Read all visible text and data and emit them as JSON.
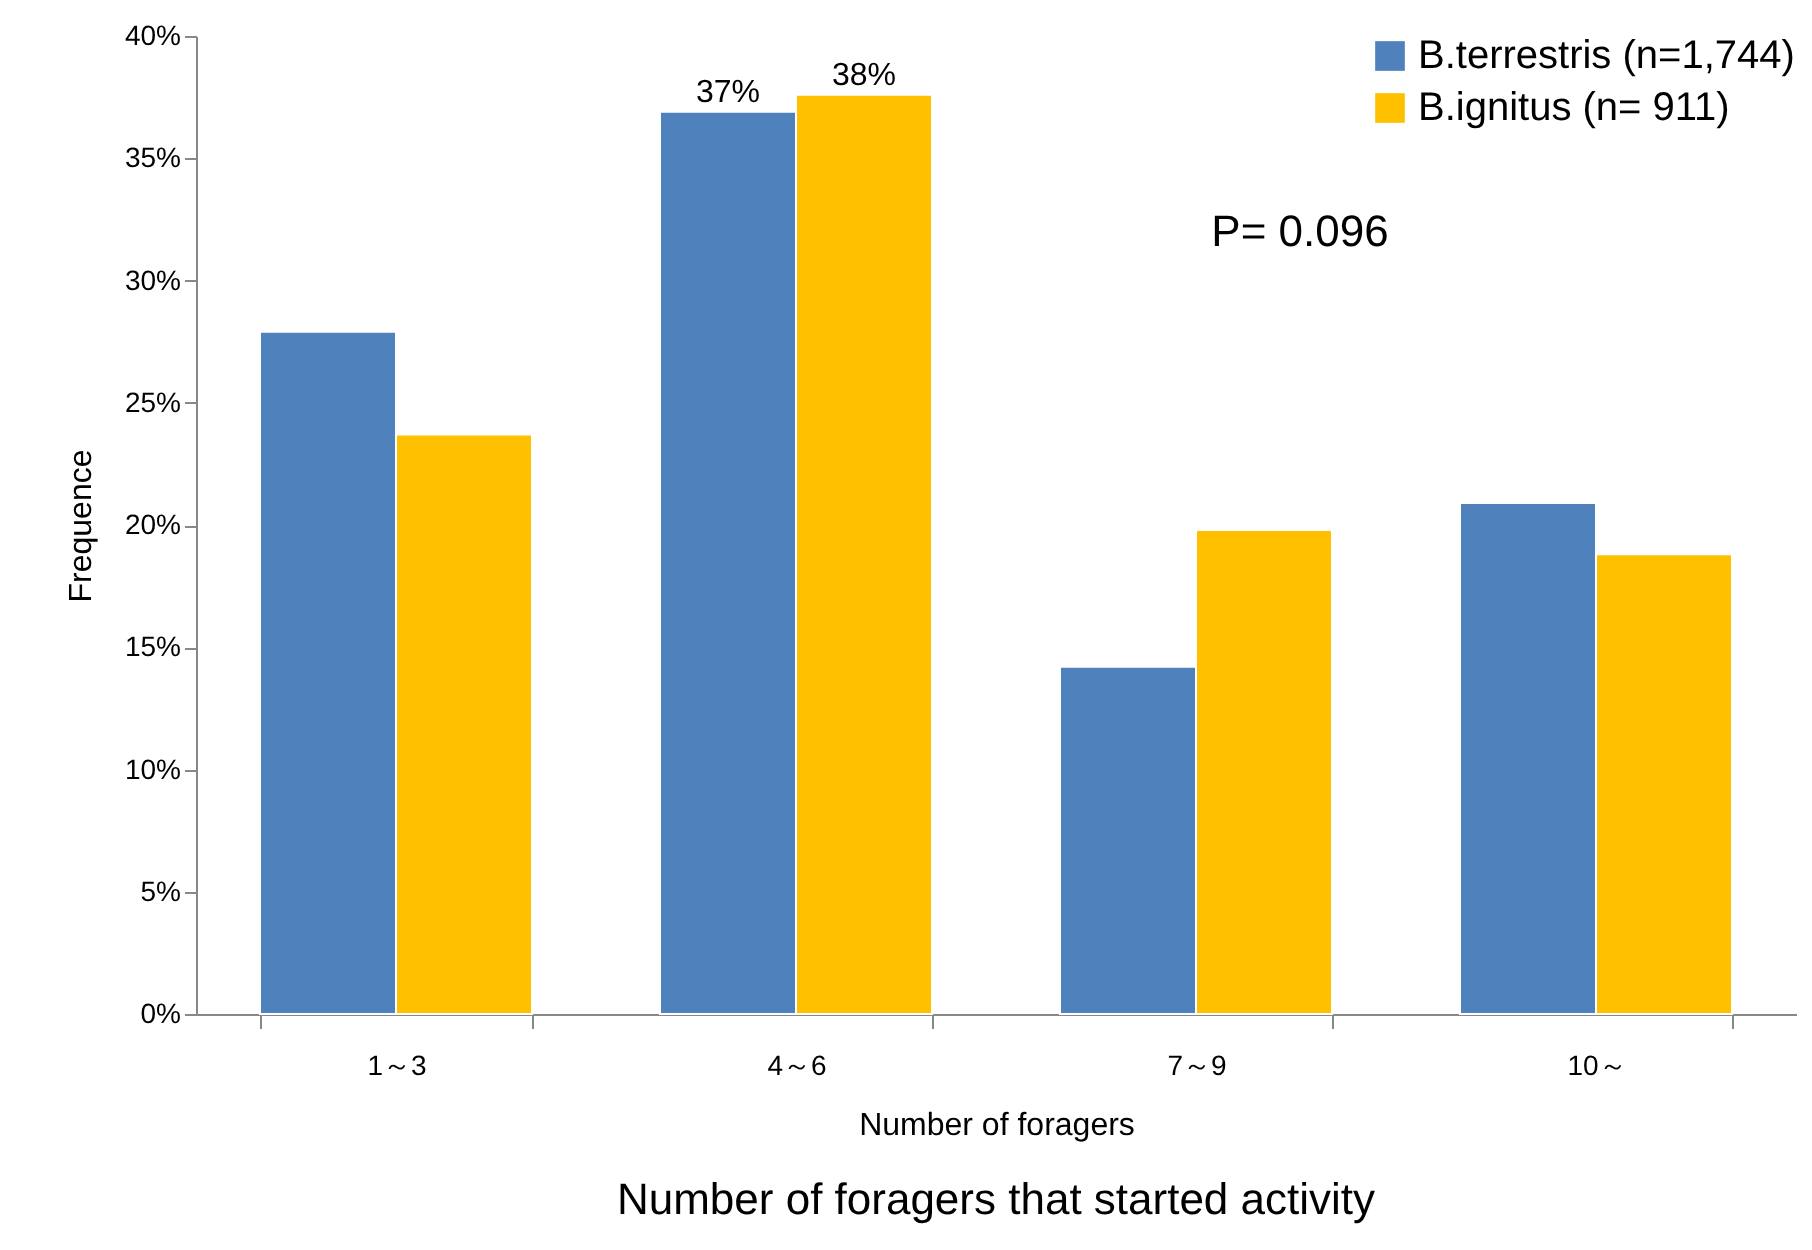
{
  "chart_data": {
    "type": "bar",
    "title": "Number of foragers that started activity",
    "xlabel": "Number of foragers",
    "ylabel": "Frequence",
    "categories": [
      "1～3",
      "4～6",
      "7～9",
      "10～"
    ],
    "series": [
      {
        "name": "B.terrestris (n=1,744)",
        "color": "#4f81bd",
        "values": [
          27.9,
          36.9,
          14.2,
          20.9
        ],
        "value_labels": [
          null,
          "37%",
          null,
          null
        ]
      },
      {
        "name": "B.ignitus (n= 911)",
        "color": "#ffc000",
        "values": [
          23.7,
          37.6,
          19.8,
          18.8
        ],
        "value_labels": [
          null,
          "38%",
          null,
          null
        ]
      }
    ],
    "ylim": [
      0,
      40
    ],
    "yticks": [
      {
        "value": 0,
        "label": "0%"
      },
      {
        "value": 5,
        "label": "5%"
      },
      {
        "value": 10,
        "label": "10%"
      },
      {
        "value": 15,
        "label": "15%"
      },
      {
        "value": 20,
        "label": "20%"
      },
      {
        "value": 25,
        "label": "25%"
      },
      {
        "value": 30,
        "label": "30%"
      },
      {
        "value": 35,
        "label": "35%"
      },
      {
        "value": 40,
        "label": "40%"
      }
    ],
    "annotations": [
      "P= 0.096"
    ],
    "legend": "top right",
    "grid": false
  }
}
